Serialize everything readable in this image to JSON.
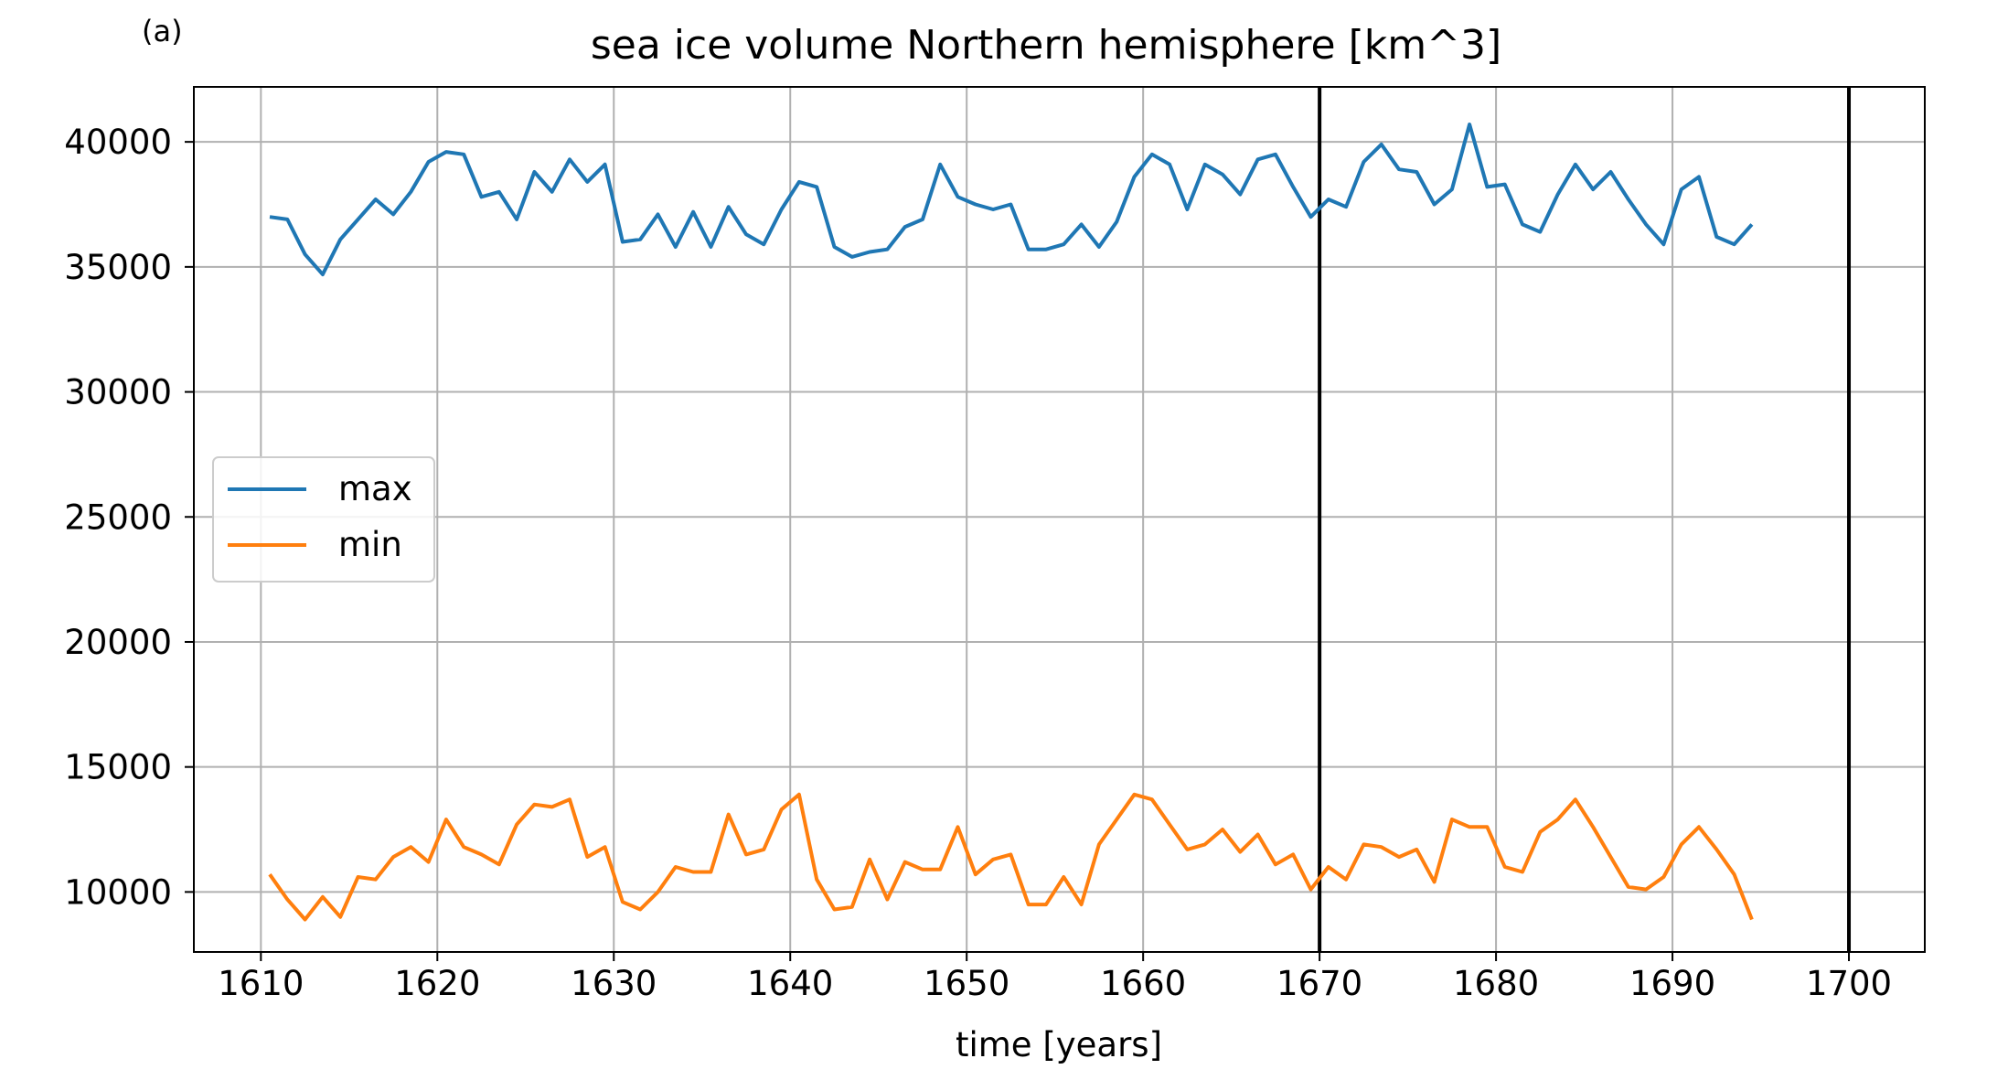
{
  "panel_label": "(a)",
  "chart_data": {
    "type": "line",
    "title": "sea ice volume Northern hemisphere [km^3]",
    "xlabel": "time [years]",
    "ylabel": "",
    "xlim": [
      1606.2,
      1704.3
    ],
    "ylim": [
      7600,
      42200
    ],
    "x_ticks": [
      1610,
      1620,
      1630,
      1640,
      1650,
      1660,
      1670,
      1680,
      1690,
      1700
    ],
    "y_ticks": [
      10000,
      15000,
      20000,
      25000,
      30000,
      35000,
      40000
    ],
    "grid": true,
    "legend_position": "center-left",
    "vertical_lines": [
      1670,
      1700
    ],
    "colors": {
      "max": "#1f77b4",
      "min": "#ff7f0e",
      "vline": "#000000",
      "grid": "#b0b0b0"
    },
    "x": [
      1610.5,
      1611.5,
      1612.5,
      1613.5,
      1614.5,
      1615.5,
      1616.5,
      1617.5,
      1618.5,
      1619.5,
      1620.5,
      1621.5,
      1622.5,
      1623.5,
      1624.5,
      1625.5,
      1626.5,
      1627.5,
      1628.5,
      1629.5,
      1630.5,
      1631.5,
      1632.5,
      1633.5,
      1634.5,
      1635.5,
      1636.5,
      1637.5,
      1638.5,
      1639.5,
      1640.5,
      1641.5,
      1642.5,
      1643.5,
      1644.5,
      1645.5,
      1646.5,
      1647.5,
      1648.5,
      1649.5,
      1650.5,
      1651.5,
      1652.5,
      1653.5,
      1654.5,
      1655.5,
      1656.5,
      1657.5,
      1658.5,
      1659.5,
      1660.5,
      1661.5,
      1662.5,
      1663.5,
      1664.5,
      1665.5,
      1666.5,
      1667.5,
      1668.5,
      1669.5,
      1670.5,
      1671.5,
      1672.5,
      1673.5,
      1674.5,
      1675.5,
      1676.5,
      1677.5,
      1678.5,
      1679.5,
      1680.5,
      1681.5,
      1682.5,
      1683.5,
      1684.5,
      1685.5,
      1686.5,
      1687.5,
      1688.5,
      1689.5,
      1690.5,
      1691.5,
      1692.5,
      1693.5,
      1694.5
    ],
    "series": [
      {
        "name": "max",
        "values": [
          37000,
          36900,
          35500,
          34700,
          36100,
          36900,
          37700,
          37100,
          38000,
          39200,
          39600,
          39500,
          37800,
          38000,
          36900,
          38800,
          38000,
          39300,
          38400,
          39100,
          36000,
          36100,
          37100,
          35800,
          37200,
          35800,
          37400,
          36300,
          35900,
          37300,
          38400,
          38200,
          35800,
          35400,
          35600,
          35700,
          36600,
          36900,
          39100,
          37800,
          37500,
          37300,
          37500,
          35700,
          35700,
          35900,
          36700,
          35800,
          36800,
          38600,
          39500,
          39100,
          37300,
          39100,
          38700,
          37900,
          39300,
          39500,
          38200,
          37000,
          37700,
          37400,
          39200,
          39900,
          38900,
          38800,
          37500,
          38100,
          40700,
          38200,
          38300,
          36700,
          36400,
          37900,
          39100,
          38100,
          38800,
          37700,
          36700,
          35900,
          38100,
          38600,
          36200,
          35900,
          36700
        ]
      },
      {
        "name": "min",
        "values": [
          10700,
          9700,
          8900,
          9800,
          9000,
          10600,
          10500,
          11400,
          11800,
          11200,
          12900,
          11800,
          11500,
          11100,
          12700,
          13500,
          13400,
          13700,
          11400,
          11800,
          9600,
          9300,
          10000,
          11000,
          10800,
          10800,
          13100,
          11500,
          11700,
          13300,
          13900,
          10500,
          9300,
          9400,
          11300,
          9700,
          11200,
          10900,
          10900,
          12600,
          10700,
          11300,
          11500,
          9500,
          9500,
          10600,
          9500,
          11900,
          12900,
          13900,
          13700,
          12700,
          11700,
          11900,
          12500,
          11600,
          12300,
          11100,
          11500,
          10100,
          11000,
          10500,
          11900,
          11800,
          11400,
          11700,
          10400,
          12900,
          12600,
          12600,
          11000,
          10800,
          12400,
          12900,
          13700,
          12600,
          11400,
          10200,
          10100,
          10600,
          11900,
          12600,
          11700,
          10700,
          8900
        ]
      }
    ]
  }
}
